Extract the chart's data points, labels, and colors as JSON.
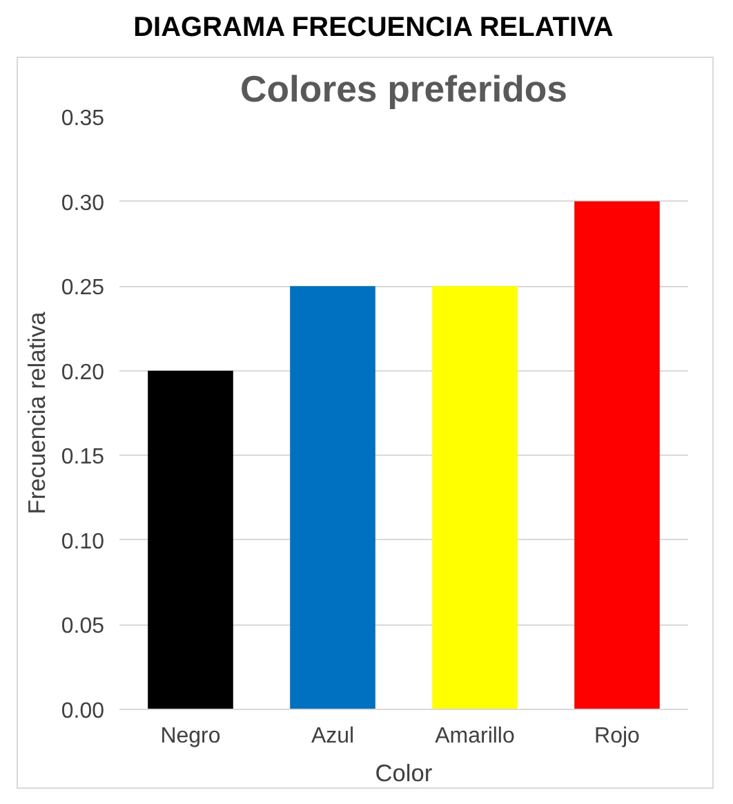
{
  "chart_data": {
    "type": "bar",
    "title": "DIAGRAMA FRECUENCIA RELATIVA",
    "subtitle": "Colores preferidos",
    "xlabel": "Color",
    "ylabel": "Frecuencia relativa",
    "categories": [
      "Negro",
      "Azul",
      "Amarillo",
      "Rojo"
    ],
    "values": [
      0.2,
      0.25,
      0.25,
      0.3
    ],
    "colors": [
      "#000000",
      "#0070c0",
      "#ffff00",
      "#ff0000"
    ],
    "ylim": [
      0,
      0.35
    ],
    "yticks": [
      {
        "value": 0,
        "label": "0.00"
      },
      {
        "value": 0.05,
        "label": "0.05"
      },
      {
        "value": 0.1,
        "label": "0.10"
      },
      {
        "value": 0.15,
        "label": "0.15"
      },
      {
        "value": 0.2,
        "label": "0.20"
      },
      {
        "value": 0.25,
        "label": "0.25"
      },
      {
        "value": 0.3,
        "label": "0.30"
      },
      {
        "value": 0.35,
        "label": "0.35"
      }
    ],
    "grid": "y"
  }
}
